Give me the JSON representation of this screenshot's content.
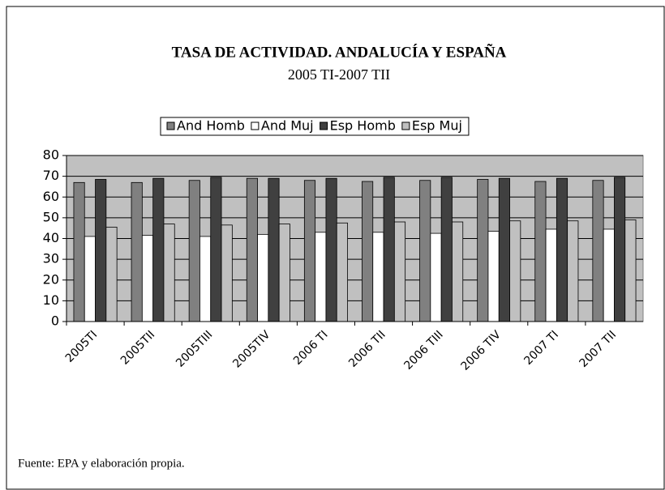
{
  "chart_data": {
    "type": "bar",
    "title": "TASA DE ACTIVIDAD. ANDALUCÍA Y ESPAÑA",
    "subtitle": "2005 TI-2007 TII",
    "source": "Fuente: EPA y elaboración propia.",
    "categories": [
      "2005TI",
      "2005TII",
      "2005TIII",
      "2005TIV",
      "2006 TI",
      "2006 TII",
      "2006 TIII",
      "2006 TIV",
      "2007 TI",
      "2007 TII"
    ],
    "series": [
      {
        "name": "And Homb",
        "color": "#808080",
        "values": [
          67,
          67,
          68,
          69,
          68,
          67.5,
          68,
          68.5,
          67.5,
          68
        ]
      },
      {
        "name": "And Muj",
        "color": "#ffffff",
        "values": [
          41,
          41.5,
          41,
          42,
          43,
          43,
          42.5,
          43.5,
          44.5,
          44.5
        ]
      },
      {
        "name": "Esp Homb",
        "color": "#404040",
        "values": [
          68.5,
          69,
          69.5,
          69,
          69,
          69.5,
          69.5,
          69,
          69,
          69.5
        ]
      },
      {
        "name": "Esp Muj",
        "color": "#c0c0c0",
        "values": [
          45.5,
          47,
          46.5,
          47,
          47.5,
          48,
          48,
          48.5,
          48.5,
          49
        ]
      }
    ],
    "ylim": [
      0,
      80
    ],
    "yticks": [
      0,
      10,
      20,
      30,
      40,
      50,
      60,
      70,
      80
    ],
    "grid": true,
    "legend": "top",
    "plot_background": "#c0c0c0"
  }
}
